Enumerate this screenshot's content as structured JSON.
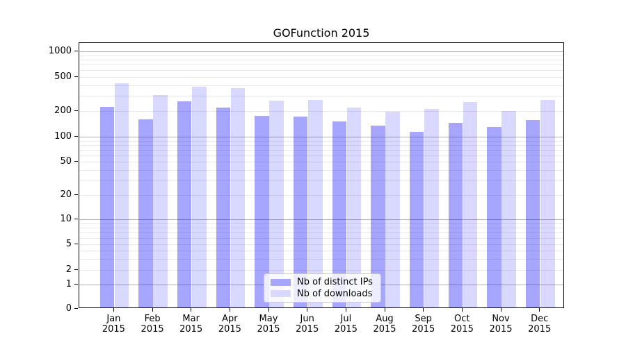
{
  "chart_data": {
    "type": "bar",
    "title": "GOFunction 2015",
    "categories": [
      "Jan 2015",
      "Feb 2015",
      "Mar 2015",
      "Apr 2015",
      "May 2015",
      "Jun 2015",
      "Jul 2015",
      "Aug 2015",
      "Sep 2015",
      "Oct 2015",
      "Nov 2015",
      "Dec 2015"
    ],
    "series": [
      {
        "name": "Nb of distinct IPs",
        "values": [
          215,
          155,
          250,
          210,
          170,
          165,
          145,
          130,
          110,
          140,
          125,
          150
        ],
        "base_color": "#0000ff",
        "alpha": 0.35,
        "rendered_color": "#a6a6ff"
      },
      {
        "name": "Nb of downloads",
        "values": [
          405,
          295,
          370,
          355,
          255,
          260,
          210,
          190,
          205,
          245,
          193,
          260
        ],
        "base_color": "#0000ff",
        "alpha": 0.15,
        "rendered_color": "#d9d9ff"
      }
    ],
    "yscale": "symlog",
    "yticks": [
      0,
      1,
      2,
      5,
      10,
      20,
      50,
      100,
      200,
      500,
      1000
    ],
    "ylim": [
      0,
      1000
    ],
    "xlabel": "",
    "ylabel": "",
    "grid": true,
    "legend_position": "lower center"
  },
  "axis": {
    "y_tick_labels": [
      "0",
      "1",
      "2",
      "5",
      "10",
      "20",
      "50",
      "100",
      "200",
      "500",
      "1000"
    ],
    "x_months": [
      "Jan",
      "Feb",
      "Mar",
      "Apr",
      "May",
      "Jun",
      "Jul",
      "Aug",
      "Sep",
      "Oct",
      "Nov",
      "Dec"
    ],
    "x_year": "2015"
  },
  "colors": {
    "major_grid": "#b0b0b0",
    "minor_grid": "#e8e8e8",
    "spine": "#000000",
    "legend_border": "#cccccc",
    "legend_background": "rgba(255,255,255,0.8)",
    "text": "#000000"
  }
}
